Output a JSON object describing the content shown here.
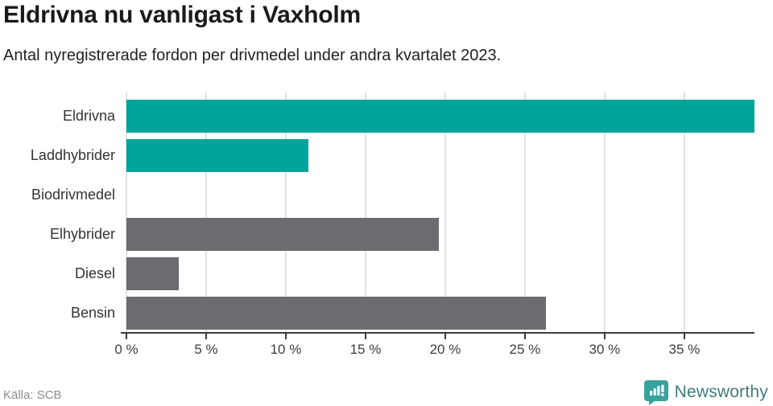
{
  "header": {
    "title": "Eldrivna nu vanligast i Vaxholm",
    "subtitle": "Antal nyregistrerade fordon per drivmedel under andra kvartalet 2023."
  },
  "chart_data": {
    "type": "bar",
    "orientation": "horizontal",
    "title": "Eldrivna nu vanligast i Vaxholm",
    "subtitle": "Antal nyregistrerade fordon per drivmedel under andra kvartalet 2023.",
    "categories": [
      "Eldrivna",
      "Laddhybrider",
      "Biodrivmedel",
      "Elhybrider",
      "Diesel",
      "Bensin"
    ],
    "values": [
      39.4,
      11.4,
      0,
      19.6,
      3.3,
      26.3
    ],
    "unit": "%",
    "xlim": [
      0,
      39.4
    ],
    "xticks": [
      0,
      5,
      10,
      15,
      20,
      25,
      30,
      35
    ],
    "xtick_labels": [
      "0 %",
      "5 %",
      "10 %",
      "15 %",
      "20 %",
      "25 %",
      "30 %",
      "35 %"
    ],
    "grid": true,
    "legend": "none",
    "bar_colors": [
      "#00a499",
      "#00a499",
      "#00a499",
      "#6b6b70",
      "#6b6b70",
      "#6b6b70"
    ]
  },
  "colors": {
    "accent_teal": "#00a499",
    "neutral_gray": "#6b6b70",
    "gridline": "#e2e2e2",
    "axis": "#3c3c3c",
    "brand_teal": "#3f7b7e",
    "logo_bubble": "#38a29b"
  },
  "footer": {
    "source": "Källa: SCB",
    "brand": "Newsworthy"
  }
}
